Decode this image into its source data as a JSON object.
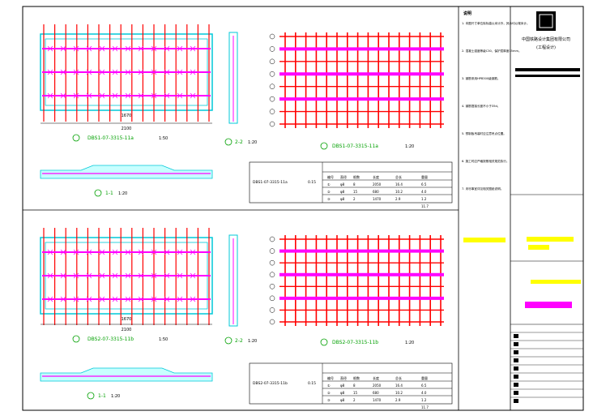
{
  "title_block": {
    "company_line1": "中国铁路设计集团有限公司",
    "company_line2": "(工程设计)"
  },
  "panels": {
    "top": {
      "plan_caption": "DBS1-07-3315-11a",
      "plan_scale": "1:50",
      "section_22_caption": "2-2",
      "section_22_scale": "1:20",
      "section_11_caption": "1-1",
      "section_11_scale": "1:20",
      "rebar_caption": "DBS1-07-3315-11a",
      "rebar_scale": "1:20",
      "dim_total": "2100",
      "dim_inner": "1670"
    },
    "bottom": {
      "plan_caption": "DBS2-07-3315-11b",
      "plan_scale": "1:50",
      "section_22_caption": "2-2",
      "section_22_scale": "1:20",
      "section_11_caption": "1-1",
      "section_11_scale": "1:20",
      "rebar_caption": "DBS2-07-3315-11b",
      "rebar_scale": "1:20",
      "dim_total": "2100",
      "dim_inner": "1670"
    }
  },
  "tables": {
    "top": {
      "header": [
        "编号",
        "直径",
        "根数",
        "长度",
        "总长",
        "重量"
      ],
      "rows": [
        [
          "①",
          "φ8",
          "8",
          "2050",
          "16.4",
          "6.5"
        ],
        [
          "②",
          "φ8",
          "15",
          "680",
          "10.2",
          "4.0"
        ],
        [
          "③",
          "φ8",
          "2",
          "1470",
          "2.9",
          "1.2"
        ]
      ],
      "mark": "DBS1-07-3315-11a",
      "volume": "0.15",
      "total": "11.7"
    },
    "bottom": {
      "header": [
        "编号",
        "直径",
        "根数",
        "长度",
        "总长",
        "重量"
      ],
      "rows": [
        [
          "①",
          "φ8",
          "8",
          "2050",
          "16.4",
          "6.5"
        ],
        [
          "②",
          "φ8",
          "15",
          "680",
          "10.2",
          "4.0"
        ],
        [
          "③",
          "φ8",
          "2",
          "1470",
          "2.9",
          "1.2"
        ]
      ],
      "mark": "DBS2-07-3315-11b",
      "volume": "0.15",
      "total": "11.7"
    }
  },
  "notes": {
    "heading": "说明",
    "items": [
      "1. 本图尺寸单位除标高以米计外，其余均以毫米计。",
      "2. 混凝土强度等级C30，保护层厚度15mm。",
      "3. 钢筋采用HPB300级钢筋。",
      "4. 钢筋搭接长度不小于35d。",
      "5. 预制板吊装时应注意吊点位置。",
      "6. 施工时应严格按照相关规范执行。",
      "7. 未尽事宜详见相关图纸说明。"
    ]
  },
  "colors": {
    "frame": "#000000",
    "rebar_red": "#ff0000",
    "rebar_magenta": "#ff00ff",
    "outline_cyan": "#00c8d8",
    "dimension_green": "#00a000",
    "highlight_yellow": "#ffff00"
  }
}
